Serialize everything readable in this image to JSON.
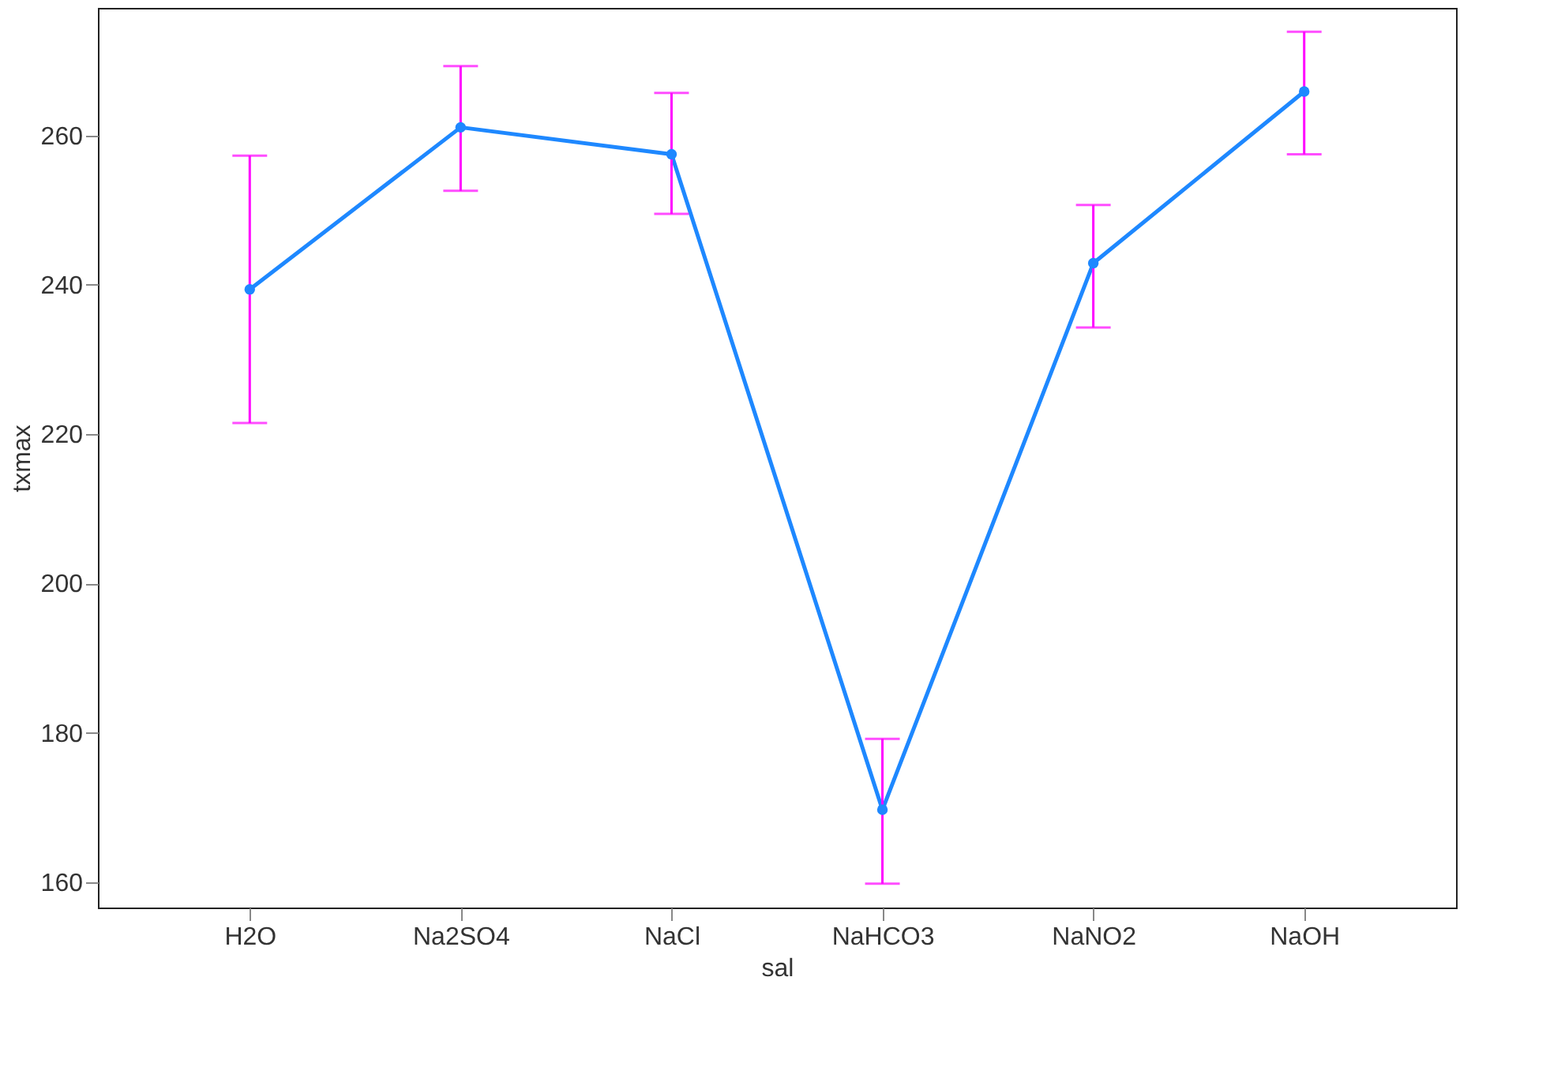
{
  "chart_data": {
    "type": "line",
    "xlabel": "sal",
    "ylabel": "txmax",
    "categories": [
      "H2O",
      "Na2SO4",
      "NaCl",
      "NaHCO3",
      "NaNO2",
      "NaOH"
    ],
    "series": [
      {
        "color": "#1e88ff",
        "values": [
          239.4,
          261.1,
          257.5,
          169.7,
          242.9,
          265.9
        ],
        "errors": [
          [
            221.5,
            257.3
          ],
          [
            252.6,
            269.3
          ],
          [
            249.5,
            265.7
          ],
          [
            159.8,
            179.2
          ],
          [
            234.3,
            250.7
          ],
          [
            257.5,
            273.9
          ]
        ]
      }
    ],
    "ylim": [
      156.6,
      277.1
    ],
    "yticks": [
      160,
      180,
      200,
      220,
      240,
      260
    ],
    "grid": false,
    "marker": "circle",
    "line_style": "solid"
  }
}
